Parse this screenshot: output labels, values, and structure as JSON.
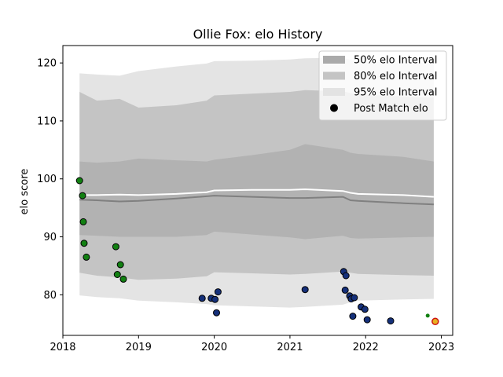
{
  "chart_data": {
    "type": "line",
    "title": "Ollie Fox: elo History",
    "xlabel": "",
    "ylabel": "elo score",
    "xlim": [
      2018.0,
      2023.15
    ],
    "ylim": [
      73,
      123
    ],
    "x_ticks": [
      2018,
      2019,
      2020,
      2021,
      2022,
      2023
    ],
    "x_tick_labels": [
      "2018",
      "2019",
      "2020",
      "2021",
      "2022",
      "2023"
    ],
    "y_ticks": [
      80,
      90,
      100,
      110,
      120
    ],
    "y_tick_labels": [
      "80",
      "90",
      "100",
      "110",
      "120"
    ],
    "grid": false,
    "legend_position": "top-right",
    "legend": [
      {
        "label": "50% elo Interval",
        "kind": "band",
        "color": "#aaaaaa"
      },
      {
        "label": "80% elo Interval",
        "kind": "band",
        "color": "#c4c4c4"
      },
      {
        "label": "95% elo Interval",
        "kind": "band",
        "color": "#e3e3e3"
      },
      {
        "label": "Post Match elo",
        "kind": "marker",
        "color": "#000000"
      }
    ],
    "bands": {
      "x": [
        2018.22,
        2018.45,
        2018.75,
        2019.0,
        2019.5,
        2019.9,
        2020.0,
        2020.5,
        2021.0,
        2021.2,
        2021.7,
        2021.8,
        2021.9,
        2022.5,
        2022.9
      ],
      "p95_upper": [
        118.2,
        118.0,
        117.8,
        118.6,
        119.4,
        119.9,
        120.3,
        120.4,
        120.6,
        120.8,
        120.9,
        120.5,
        120.3,
        120.0,
        120.0
      ],
      "p95_lower": [
        79.9,
        79.6,
        79.4,
        79.0,
        78.7,
        78.4,
        78.2,
        78.0,
        77.8,
        77.9,
        78.3,
        78.7,
        79.0,
        79.2,
        79.3
      ],
      "p80_upper": [
        115.0,
        113.5,
        113.8,
        112.3,
        112.7,
        113.5,
        114.4,
        114.7,
        115.0,
        115.3,
        115.1,
        114.8,
        114.6,
        114.2,
        114.0
      ],
      "p80_lower": [
        83.8,
        83.3,
        83.0,
        82.6,
        82.8,
        83.2,
        83.9,
        83.7,
        83.5,
        83.6,
        84.0,
        83.8,
        83.6,
        83.4,
        83.3
      ],
      "p50_upper": [
        103.0,
        102.8,
        103.0,
        103.5,
        103.2,
        103.0,
        103.3,
        104.1,
        105.0,
        106.0,
        105.0,
        104.5,
        104.3,
        103.8,
        103.0
      ],
      "p50_lower": [
        90.3,
        90.2,
        90.0,
        90.0,
        90.0,
        90.3,
        90.9,
        90.4,
        89.9,
        89.6,
        90.2,
        89.8,
        89.7,
        89.9,
        90.0
      ],
      "mean": [
        97.2,
        97.2,
        97.3,
        97.2,
        97.4,
        97.7,
        98.0,
        98.1,
        98.1,
        98.2,
        97.9,
        97.6,
        97.4,
        97.2,
        96.9
      ],
      "median": [
        96.4,
        96.3,
        96.1,
        96.2,
        96.6,
        97.0,
        97.1,
        96.9,
        96.7,
        96.7,
        96.9,
        96.3,
        96.2,
        95.8,
        95.6
      ]
    },
    "series": [
      {
        "points": [
          {
            "x": 2018.22,
            "y": 99.7,
            "color": "#128012"
          },
          {
            "x": 2018.26,
            "y": 97.1,
            "color": "#128012"
          },
          {
            "x": 2018.27,
            "y": 92.6,
            "color": "#128012"
          },
          {
            "x": 2018.28,
            "y": 88.9,
            "color": "#128012"
          },
          {
            "x": 2018.31,
            "y": 86.5,
            "color": "#128012"
          },
          {
            "x": 2018.7,
            "y": 88.3,
            "color": "#128012"
          },
          {
            "x": 2018.72,
            "y": 83.5,
            "color": "#128012"
          },
          {
            "x": 2018.76,
            "y": 85.2,
            "color": "#128012"
          },
          {
            "x": 2018.8,
            "y": 82.7,
            "color": "#128012"
          },
          {
            "x": 2019.84,
            "y": 79.4,
            "color": "#15307a"
          },
          {
            "x": 2019.96,
            "y": 79.4,
            "color": "#15307a"
          },
          {
            "x": 2020.01,
            "y": 79.2,
            "color": "#15307a"
          },
          {
            "x": 2020.03,
            "y": 76.9,
            "color": "#15307a"
          },
          {
            "x": 2020.05,
            "y": 80.5,
            "color": "#15307a"
          },
          {
            "x": 2021.2,
            "y": 80.9,
            "color": "#15307a"
          },
          {
            "x": 2021.71,
            "y": 84.0,
            "color": "#15307a"
          },
          {
            "x": 2021.74,
            "y": 83.3,
            "color": "#15307a"
          },
          {
            "x": 2021.73,
            "y": 80.8,
            "color": "#15307a"
          },
          {
            "x": 2021.79,
            "y": 79.8,
            "color": "#15307a"
          },
          {
            "x": 2021.81,
            "y": 79.3,
            "color": "#15307a"
          },
          {
            "x": 2021.85,
            "y": 79.5,
            "color": "#15307a"
          },
          {
            "x": 2021.83,
            "y": 76.3,
            "color": "#15307a"
          },
          {
            "x": 2021.94,
            "y": 77.9,
            "color": "#15307a"
          },
          {
            "x": 2021.99,
            "y": 77.5,
            "color": "#15307a"
          },
          {
            "x": 2022.02,
            "y": 75.7,
            "color": "#15307a"
          },
          {
            "x": 2022.33,
            "y": 75.5,
            "color": "#15307a"
          },
          {
            "x": 2022.82,
            "y": 76.4,
            "color": "#128012",
            "small": true
          },
          {
            "x": 2022.92,
            "y": 75.4,
            "color": "#e8b020",
            "ring": "#cc1111"
          }
        ]
      }
    ]
  }
}
